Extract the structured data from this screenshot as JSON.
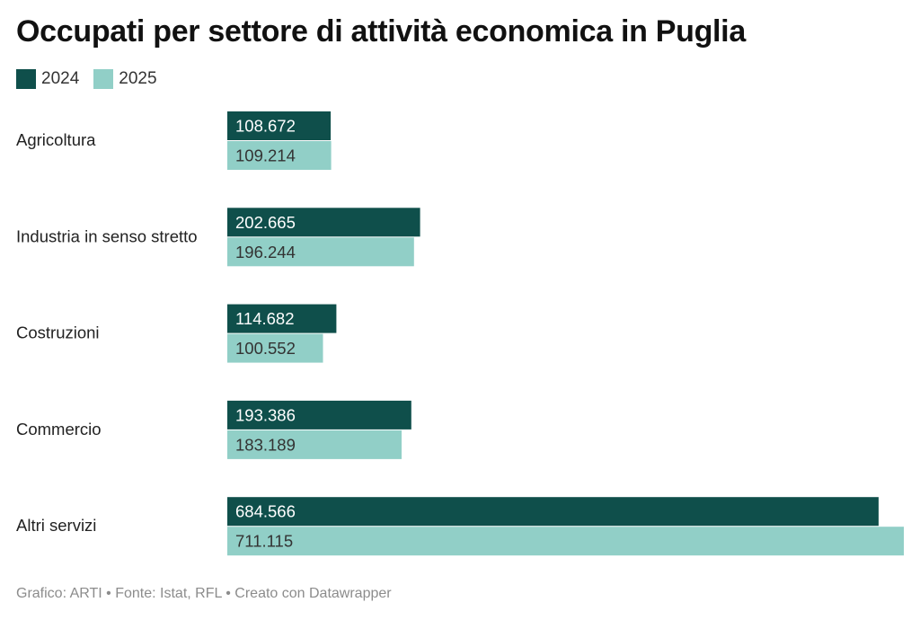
{
  "chart_data": {
    "type": "bar",
    "orientation": "horizontal",
    "title": "Occupati per settore di attività economica in Puglia",
    "categories": [
      "Agricoltura",
      "Industria in senso stretto",
      "Costruzioni",
      "Commercio",
      "Altri servizi"
    ],
    "series": [
      {
        "name": "2024",
        "color": "#0f4f4b",
        "label_color": "#ffffff",
        "values": [
          108672,
          202665,
          114682,
          193386,
          684566
        ],
        "labels": [
          "108.672",
          "202.665",
          "114.682",
          "193.386",
          "684.566"
        ]
      },
      {
        "name": "2025",
        "color": "#91cfc7",
        "label_color": "#333333",
        "values": [
          109214,
          196244,
          100552,
          183189,
          711115
        ],
        "labels": [
          "109.214",
          "196.244",
          "100.552",
          "183.189",
          "711.115"
        ]
      }
    ],
    "xlim": [
      0,
      711115
    ],
    "grid": false,
    "legend": "top-left"
  },
  "legend": {
    "items": [
      {
        "label": "2024",
        "color": "#0f4f4b"
      },
      {
        "label": "2025",
        "color": "#91cfc7"
      }
    ]
  },
  "footer": {
    "text": "Grafico: ARTI • Fonte: Istat, RFL • Creato con Datawrapper"
  }
}
